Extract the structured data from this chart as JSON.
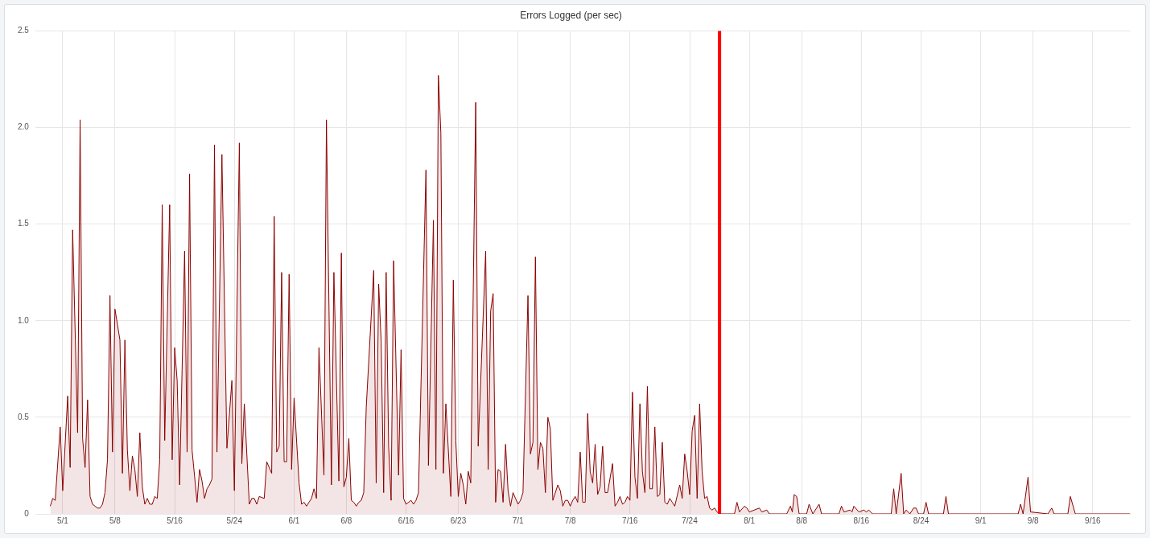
{
  "chart_data": {
    "type": "area",
    "title": "Errors Logged (per sec)",
    "grid": true,
    "xlim": [
      "--04-27T08:00",
      "--09-21T02:00"
    ],
    "xticks": [
      {
        "value": "--05-01",
        "label": "5/1"
      },
      {
        "value": "--05-08",
        "label": "5/8"
      },
      {
        "value": "--05-16",
        "label": "5/16"
      },
      {
        "value": "--05-24",
        "label": "5/24"
      },
      {
        "value": "--06-01",
        "label": "6/1"
      },
      {
        "value": "--06-08",
        "label": "6/8"
      },
      {
        "value": "--06-16",
        "label": "6/16"
      },
      {
        "value": "--06-23",
        "label": "6/23"
      },
      {
        "value": "--07-01",
        "label": "7/1"
      },
      {
        "value": "--07-08",
        "label": "7/8"
      },
      {
        "value": "--07-16",
        "label": "7/16"
      },
      {
        "value": "--07-24",
        "label": "7/24"
      },
      {
        "value": "--08-01",
        "label": "8/1"
      },
      {
        "value": "--08-08",
        "label": "8/8"
      },
      {
        "value": "--08-16",
        "label": "8/16"
      },
      {
        "value": "--08-24",
        "label": "8/24"
      },
      {
        "value": "--09-01",
        "label": "9/1"
      },
      {
        "value": "--09-08",
        "label": "9/8"
      },
      {
        "value": "--09-16",
        "label": "9/16"
      }
    ],
    "ylim": [
      0,
      2.5
    ],
    "yticks": [
      0,
      0.5,
      {
        "value": 1,
        "label": "1.0"
      },
      1.5,
      {
        "value": 2,
        "label": "2.0"
      },
      2.5
    ],
    "ref_lines": [
      {
        "axis": "x",
        "value": "--07-28",
        "color": "#ff0000"
      }
    ],
    "x": [
      "--04-29T08:00",
      "--04-29T16:00",
      "--04-30T00:00",
      "--04-30T16:00",
      "--05-01T00:00",
      "--05-01T16:00",
      "--05-02T00:00",
      "--05-02T08:00",
      "--05-03T00:00",
      "--05-03T08:00",
      "--05-03T16:00",
      "--05-04T00:00",
      "--05-04T08:00",
      "--05-04T16:00",
      "--05-05T00:00",
      "--05-05T08:00",
      "--05-05T16:00",
      "--05-06T00:00",
      "--05-06T08:00",
      "--05-06T16:00",
      "--05-07T00:00",
      "--05-07T08:00",
      "--05-07T16:00",
      "--05-08T00:00",
      "--05-08T16:00",
      "--05-09T00:00",
      "--05-09T08:00",
      "--05-09T16:00",
      "--05-10T00:00",
      "--05-10T08:00",
      "--05-10T16:00",
      "--05-11T00:00",
      "--05-11T08:00",
      "--05-11T16:00",
      "--05-12T00:00",
      "--05-12T08:00",
      "--05-12T16:00",
      "--05-13T00:00",
      "--05-13T08:00",
      "--05-13T16:00",
      "--05-14T00:00",
      "--05-14T08:00",
      "--05-14T16:00",
      "--05-15T08:00",
      "--05-15T16:00",
      "--05-16T00:00",
      "--05-16T08:00",
      "--05-16T16:00",
      "--05-17T08:00",
      "--05-17T16:00",
      "--05-18T00:00",
      "--05-18T08:00",
      "--05-19T00:00",
      "--05-19T08:00",
      "--05-19T16:00",
      "--05-20T00:00",
      "--05-20T08:00",
      "--05-20T16:00",
      "--05-21T00:00",
      "--05-21T08:00",
      "--05-21T16:00",
      "--05-22T08:00",
      "--05-23T00:00",
      "--05-23T16:00",
      "--05-24T00:00",
      "--05-24T16:00",
      "--05-25T00:00",
      "--05-25T08:00",
      "--05-26T00:00",
      "--05-26T08:00",
      "--05-26T16:00",
      "--05-27T00:00",
      "--05-27T08:00",
      "--05-28T00:00",
      "--05-28T08:00",
      "--05-29T00:00",
      "--05-29T08:00",
      "--05-29T16:00",
      "--05-30T00:00",
      "--05-30T08:00",
      "--05-30T16:00",
      "--05-31T00:00",
      "--05-31T08:00",
      "--05-31T16:00",
      "--06-01T00:00",
      "--06-01T16:00",
      "--06-02T00:00",
      "--06-02T08:00",
      "--06-02T16:00",
      "--06-03T00:00",
      "--06-03T08:00",
      "--06-03T16:00",
      "--06-04T00:00",
      "--06-04T08:00",
      "--06-05T00:00",
      "--06-05T08:00",
      "--06-06T00:00",
      "--06-06T08:00",
      "--06-07T00:00",
      "--06-07T08:00",
      "--06-07T16:00",
      "--06-08T00:00",
      "--06-08T08:00",
      "--06-08T16:00",
      "--06-09T00:00",
      "--06-09T08:00",
      "--06-09T16:00",
      "--06-10T00:00",
      "--06-10T08:00",
      "--06-10T16:00",
      "--06-11T16:00",
      "--06-12T00:00",
      "--06-12T08:00",
      "--06-12T16:00",
      "--06-13T00:00",
      "--06-13T08:00",
      "--06-13T16:00",
      "--06-14T00:00",
      "--06-14T08:00",
      "--06-15T00:00",
      "--06-15T08:00",
      "--06-15T16:00",
      "--06-16T00:00",
      "--06-16T16:00",
      "--06-17T00:00",
      "--06-17T08:00",
      "--06-17T16:00",
      "--06-18T16:00",
      "--06-19T00:00",
      "--06-19T16:00",
      "--06-20T00:00",
      "--06-20T08:00",
      "--06-20T16:00",
      "--06-21T00:00",
      "--06-21T08:00",
      "--06-22T00:00",
      "--06-22T08:00",
      "--06-22T16:00",
      "--06-23T00:00",
      "--06-23T08:00",
      "--06-23T16:00",
      "--06-24T00:00",
      "--06-24T08:00",
      "--06-24T16:00",
      "--06-25T08:00",
      "--06-25T16:00",
      "--06-26T16:00",
      "--06-27T00:00",
      "--06-27T08:00",
      "--06-27T16:00",
      "--06-28T00:00",
      "--06-28T08:00",
      "--06-28T16:00",
      "--06-29T00:00",
      "--06-29T08:00",
      "--06-29T16:00",
      "--06-30T00:00",
      "--06-30T08:00",
      "--06-30T16:00",
      "--07-01T00:00",
      "--07-01T08:00",
      "--07-01T16:00",
      "--07-02T08:00",
      "--07-02T16:00",
      "--07-03T00:00",
      "--07-03T08:00",
      "--07-03T16:00",
      "--07-04T00:00",
      "--07-04T08:00",
      "--07-04T16:00",
      "--07-05T00:00",
      "--07-05T08:00",
      "--07-05T16:00",
      "--07-06T08:00",
      "--07-06T16:00",
      "--07-07T00:00",
      "--07-07T08:00",
      "--07-07T16:00",
      "--07-08T00:00",
      "--07-08T08:00",
      "--07-08T16:00",
      "--07-09T00:00",
      "--07-09T08:00",
      "--07-09T16:00",
      "--07-10T00:00",
      "--07-10T08:00",
      "--07-10T16:00",
      "--07-11T00:00",
      "--07-11T08:00",
      "--07-11T16:00",
      "--07-12T00:00",
      "--07-12T08:00",
      "--07-12T16:00",
      "--07-13T00:00",
      "--07-13T16:00",
      "--07-14T00:00",
      "--07-14T08:00",
      "--07-14T16:00",
      "--07-15T00:00",
      "--07-15T08:00",
      "--07-15T16:00",
      "--07-16T00:00",
      "--07-16T08:00",
      "--07-16T16:00",
      "--07-17T00:00",
      "--07-17T08:00",
      "--07-17T16:00",
      "--07-18T00:00",
      "--07-18T08:00",
      "--07-18T16:00",
      "--07-19T00:00",
      "--07-19T08:00",
      "--07-19T16:00",
      "--07-20T00:00",
      "--07-20T08:00",
      "--07-20T16:00",
      "--07-21T00:00",
      "--07-21T08:00",
      "--07-21T16:00",
      "--07-22T00:00",
      "--07-22T16:00",
      "--07-23T00:00",
      "--07-23T08:00",
      "--07-23T16:00",
      "--07-24T00:00",
      "--07-24T08:00",
      "--07-24T16:00",
      "--07-25T00:00",
      "--07-25T08:00",
      "--07-25T16:00",
      "--07-26T00:00",
      "--07-26T08:00",
      "--07-26T16:00",
      "--07-27T00:00",
      "--07-27T08:00",
      "--07-27T16:00",
      "--07-28T00:00",
      "--07-29T00:00",
      "--07-30T00:00",
      "--07-30T08:00",
      "--07-30T16:00",
      "--07-31T08:00",
      "--07-31T16:00",
      "--08-01T00:00",
      "--08-02T08:00",
      "--08-02T16:00",
      "--08-03T08:00",
      "--08-03T16:00",
      "--08-05T00:00",
      "--08-06T00:00",
      "--08-06T12:00",
      "--08-06T18:00",
      "--08-07T00:00",
      "--08-07T08:00",
      "--08-07T16:00",
      "--08-08T16:00",
      "--08-09T00:00",
      "--08-09T12:00",
      "--08-10T08:00",
      "--08-10T16:00",
      "--08-13T00:00",
      "--08-13T08:00",
      "--08-13T16:00",
      "--08-14T12:00",
      "--08-14T18:00",
      "--08-15T00:00",
      "--08-15T16:00",
      "--08-16T08:00",
      "--08-16T16:00",
      "--08-17T00:00",
      "--08-17T12:00",
      "--08-20T00:00",
      "--08-20T08:00",
      "--08-20T16:00",
      "--08-21T08:00",
      "--08-21T16:00",
      "--08-22T00:00",
      "--08-22T12:00",
      "--08-23T00:00",
      "--08-23T08:00",
      "--08-23T16:00",
      "--08-24T08:00",
      "--08-24T16:00",
      "--08-25T00:00",
      "--08-27T00:00",
      "--08-27T08:00",
      "--08-27T16:00",
      "--09-06T00:00",
      "--09-06T08:00",
      "--09-06T16:00",
      "--09-07T08:00",
      "--09-07T16:00",
      "--09-10T00:00",
      "--09-10T12:00",
      "--09-10T20:00",
      "--09-12T16:00",
      "--09-13T00:00",
      "--09-13T16:00",
      "--09-21T00:00"
    ],
    "series": [
      {
        "color": "#8b0000",
        "values": [
          0.04,
          0.08,
          0.07,
          0.45,
          0.12,
          0.61,
          0.24,
          1.47,
          0.42,
          2.04,
          0.39,
          0.24,
          0.59,
          0.09,
          0.05,
          0.04,
          0.03,
          0.03,
          0.05,
          0.11,
          0.28,
          1.13,
          0.32,
          1.06,
          0.9,
          0.21,
          0.9,
          0.33,
          0.12,
          0.3,
          0.23,
          0.09,
          0.42,
          0.14,
          0.05,
          0.08,
          0.05,
          0.05,
          0.09,
          0.08,
          0.28,
          1.6,
          0.38,
          1.6,
          0.28,
          0.86,
          0.69,
          0.15,
          1.36,
          0.32,
          1.76,
          0.33,
          0.06,
          0.23,
          0.17,
          0.08,
          0.13,
          0.15,
          0.18,
          1.91,
          0.32,
          1.86,
          0.34,
          0.69,
          0.12,
          1.92,
          0.26,
          0.57,
          0.05,
          0.08,
          0.08,
          0.05,
          0.09,
          0.08,
          0.27,
          0.21,
          1.54,
          0.32,
          0.35,
          1.25,
          0.27,
          0.27,
          1.24,
          0.23,
          0.6,
          0.16,
          0.05,
          0.06,
          0.04,
          0.06,
          0.08,
          0.13,
          0.08,
          0.86,
          0.2,
          2.04,
          0.15,
          1.25,
          0.17,
          1.35,
          0.14,
          0.19,
          0.39,
          0.07,
          0.06,
          0.04,
          0.06,
          0.07,
          0.11,
          0.55,
          1.26,
          0.16,
          1.19,
          0.89,
          0.11,
          1.25,
          0.35,
          0.07,
          1.31,
          0.2,
          0.85,
          0.08,
          0.05,
          0.07,
          0.05,
          0.07,
          0.11,
          1.78,
          0.25,
          1.52,
          0.23,
          2.27,
          1.97,
          0.21,
          0.57,
          0.09,
          1.21,
          0.38,
          0.09,
          0.21,
          0.15,
          0.05,
          0.22,
          0.16,
          2.13,
          0.35,
          1.36,
          0.23,
          1.05,
          1.14,
          0.06,
          0.23,
          0.22,
          0.06,
          0.36,
          0.12,
          0.04,
          0.11,
          0.08,
          0.05,
          0.07,
          0.11,
          1.13,
          0.31,
          0.37,
          1.33,
          0.23,
          0.37,
          0.34,
          0.11,
          0.5,
          0.44,
          0.07,
          0.15,
          0.12,
          0.04,
          0.07,
          0.07,
          0.04,
          0.07,
          0.09,
          0.06,
          0.32,
          0.06,
          0.06,
          0.52,
          0.22,
          0.16,
          0.36,
          0.1,
          0.14,
          0.35,
          0.11,
          0.11,
          0.26,
          0.04,
          0.06,
          0.09,
          0.05,
          0.06,
          0.09,
          0.07,
          0.63,
          0.19,
          0.08,
          0.57,
          0.22,
          0.11,
          0.66,
          0.13,
          0.13,
          0.45,
          0.09,
          0.1,
          0.37,
          0.06,
          0.05,
          0.08,
          0.06,
          0.04,
          0.15,
          0.08,
          0.31,
          0.22,
          0.1,
          0.43,
          0.51,
          0.08,
          0.57,
          0.22,
          0.08,
          0.09,
          0.03,
          0.02,
          0.03,
          0.01,
          0,
          0,
          0,
          0.06,
          0.01,
          0.04,
          0.03,
          0.01,
          0.03,
          0.01,
          0.02,
          0,
          0,
          0,
          0.04,
          0.01,
          0.1,
          0.09,
          0,
          0,
          0.05,
          0,
          0.05,
          0,
          0,
          0.04,
          0.01,
          0.02,
          0.01,
          0.04,
          0.01,
          0.02,
          0.01,
          0.02,
          0,
          0,
          0.13,
          0,
          0.21,
          0,
          0.02,
          0,
          0.03,
          0.03,
          0,
          0,
          0.06,
          0,
          0,
          0.09,
          0,
          0,
          0.05,
          0,
          0.19,
          0.01,
          0,
          0.03,
          0,
          0,
          0.09,
          0,
          0
        ]
      }
    ]
  }
}
